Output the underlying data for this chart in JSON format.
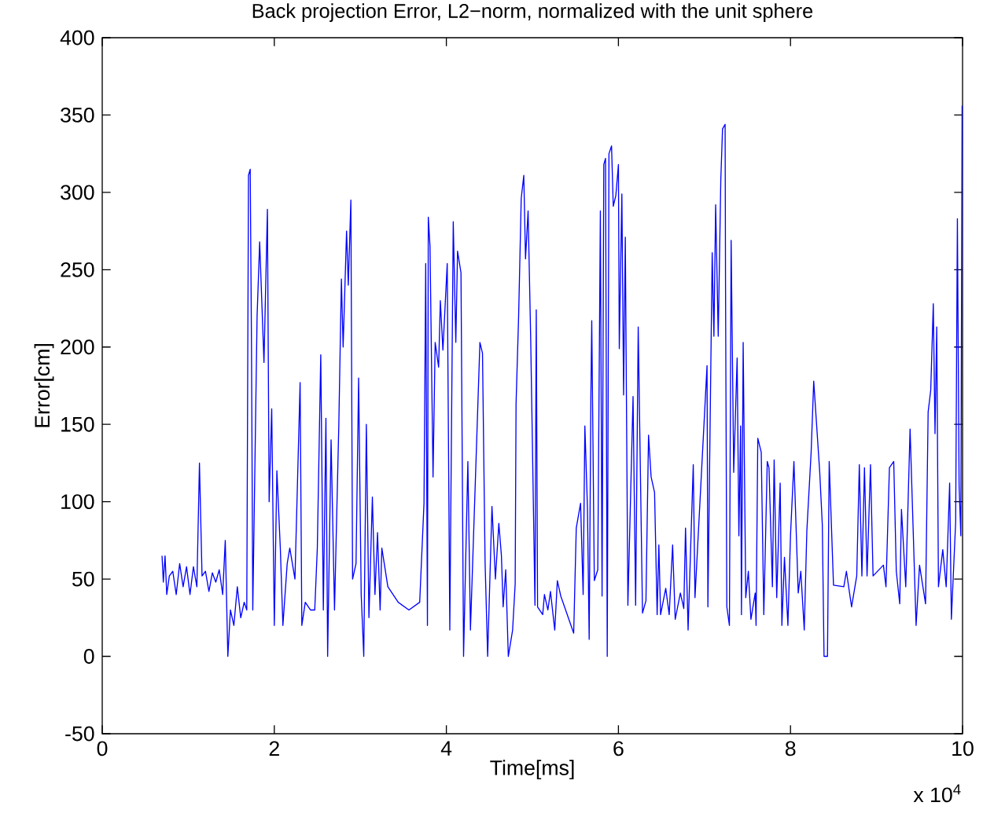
{
  "chart_data": {
    "type": "line",
    "title": "Back projection Error, L2−norm, normalized with the unit sphere",
    "xlabel": "Time[ms]",
    "ylabel": "Error[cm]",
    "annotations": [
      "x 10$^{4}$"
    ],
    "xlim": [
      0,
      10
    ],
    "xticks": [
      0,
      2,
      4,
      6,
      8,
      10
    ],
    "ylim": [
      -50,
      400
    ],
    "yticks": [
      -50,
      0,
      50,
      100,
      150,
      200,
      250,
      300,
      350,
      400
    ],
    "grid": false,
    "marker": "none",
    "line_style": "solid",
    "series": [
      {
        "color": "#0000ff",
        "x": [
          0.695,
          0.71,
          0.73,
          0.75,
          0.78,
          0.82,
          0.86,
          0.9,
          0.94,
          0.98,
          1.02,
          1.06,
          1.1,
          1.13,
          1.16,
          1.2,
          1.24,
          1.28,
          1.32,
          1.36,
          1.4,
          1.43,
          1.46,
          1.49,
          1.53,
          1.57,
          1.61,
          1.65,
          1.68,
          1.7,
          1.72,
          1.735,
          1.75,
          1.8,
          1.83,
          1.88,
          1.92,
          1.94,
          1.97,
          2.0,
          2.03,
          2.07,
          2.1,
          2.15,
          2.18,
          2.24,
          2.3,
          2.32,
          2.36,
          2.42,
          2.47,
          2.5,
          2.54,
          2.57,
          2.6,
          2.62,
          2.66,
          2.7,
          2.75,
          2.78,
          2.8,
          2.84,
          2.86,
          2.89,
          2.91,
          2.95,
          2.98,
          3.01,
          3.04,
          3.07,
          3.1,
          3.14,
          3.17,
          3.2,
          3.23,
          3.25,
          3.32,
          3.44,
          3.565,
          3.69,
          3.74,
          3.76,
          3.78,
          3.79,
          3.81,
          3.845,
          3.87,
          3.91,
          3.93,
          3.96,
          4.01,
          4.04,
          4.08,
          4.11,
          4.13,
          4.17,
          4.2,
          4.25,
          4.28,
          4.39,
          4.42,
          4.45,
          4.48,
          4.53,
          4.57,
          4.61,
          4.64,
          4.66,
          4.69,
          4.72,
          4.77,
          4.8,
          4.81,
          4.84,
          4.87,
          4.9,
          4.92,
          4.95,
          4.98,
          5.0,
          5.03,
          5.045,
          5.06,
          5.12,
          5.14,
          5.18,
          5.21,
          5.26,
          5.29,
          5.33,
          5.48,
          5.51,
          5.56,
          5.59,
          5.61,
          5.64,
          5.66,
          5.68,
          5.69,
          5.72,
          5.76,
          5.79,
          5.81,
          5.83,
          5.85,
          5.87,
          5.89,
          5.92,
          5.94,
          5.97,
          6.0,
          6.01,
          6.04,
          6.06,
          6.08,
          6.11,
          6.17,
          6.2,
          6.23,
          6.28,
          6.32,
          6.35,
          6.38,
          6.42,
          6.45,
          6.47,
          6.49,
          6.55,
          6.59,
          6.63,
          6.66,
          6.72,
          6.76,
          6.78,
          6.81,
          6.84,
          6.87,
          6.89,
          7.03,
          7.04,
          7.09,
          7.11,
          7.13,
          7.16,
          7.19,
          7.21,
          7.24,
          7.245,
          7.26,
          7.29,
          7.31,
          7.34,
          7.38,
          7.4,
          7.42,
          7.43,
          7.45,
          7.48,
          7.51,
          7.54,
          7.59,
          7.6,
          7.62,
          7.66,
          7.69,
          7.73,
          7.75,
          7.79,
          7.81,
          7.84,
          7.88,
          7.9,
          7.93,
          7.97,
          8.0,
          8.04,
          8.09,
          8.12,
          8.16,
          8.19,
          8.24,
          8.27,
          8.34,
          8.37,
          8.39,
          8.43,
          8.45,
          8.5,
          8.62,
          8.65,
          8.71,
          8.77,
          8.8,
          8.83,
          8.86,
          8.89,
          8.93,
          8.96,
          9.08,
          9.11,
          9.15,
          9.2,
          9.23,
          9.27,
          9.29,
          9.34,
          9.39,
          9.46,
          9.5,
          9.57,
          9.6,
          9.63,
          9.66,
          9.68,
          9.7,
          9.72,
          9.77,
          9.81,
          9.85,
          9.87,
          9.92,
          9.94,
          9.96,
          9.98,
          9.995
        ],
        "values": [
          65,
          48,
          65,
          40,
          52,
          55,
          40,
          60,
          45,
          58,
          40,
          58,
          45,
          125,
          52,
          55,
          42,
          54,
          48,
          56,
          40,
          75,
          0,
          30,
          20,
          45,
          25,
          35,
          30,
          311,
          315,
          200,
          30,
          220,
          268,
          190,
          289,
          100,
          160,
          20,
          120,
          70,
          20,
          60,
          70,
          50,
          177,
          20,
          35,
          30,
          30,
          70,
          195,
          30,
          154,
          0,
          140,
          30,
          150,
          244,
          200,
          275,
          240,
          295,
          50,
          60,
          180,
          40,
          0,
          150,
          25,
          103,
          40,
          80,
          30,
          70,
          45,
          35,
          30,
          35,
          99,
          254,
          20,
          284,
          265,
          116,
          203,
          187,
          230,
          198,
          254,
          17,
          281,
          203,
          262,
          248,
          0,
          126,
          17,
          203,
          196,
          61,
          0,
          97,
          50,
          86,
          65,
          32,
          56,
          0,
          17,
          47,
          163,
          220,
          296,
          311,
          257,
          288,
          206,
          138,
          33,
          224,
          32,
          27,
          40,
          30,
          42,
          17,
          49,
          39,
          15,
          83,
          99,
          40,
          149,
          96,
          11,
          169,
          217,
          49,
          56,
          288,
          39,
          318,
          322,
          0,
          325,
          330,
          291,
          298,
          318,
          199,
          299,
          169,
          271,
          33,
          168,
          33,
          213,
          28,
          36,
          143,
          116,
          106,
          27,
          72,
          27,
          44,
          27,
          72,
          24,
          41,
          31,
          83,
          17,
          71,
          124,
          38,
          188,
          32,
          261,
          207,
          292,
          207,
          308,
          341,
          344,
          240,
          32,
          20,
          269,
          119,
          193,
          78,
          149,
          27,
          203,
          38,
          55,
          24,
          41,
          20,
          141,
          132,
          27,
          126,
          122,
          45,
          127,
          38,
          112,
          20,
          64,
          20,
          78,
          126,
          41,
          55,
          17,
          81,
          132,
          178,
          119,
          85,
          0,
          0,
          126,
          46,
          45,
          55,
          32,
          52,
          124,
          52,
          122,
          52,
          124,
          52,
          59,
          45,
          122,
          126,
          55,
          34,
          95,
          45,
          147,
          20,
          59,
          34,
          158,
          172,
          228,
          144,
          213,
          45,
          69,
          45,
          112,
          24,
          87,
          283,
          110,
          78,
          356
        ]
      }
    ]
  }
}
